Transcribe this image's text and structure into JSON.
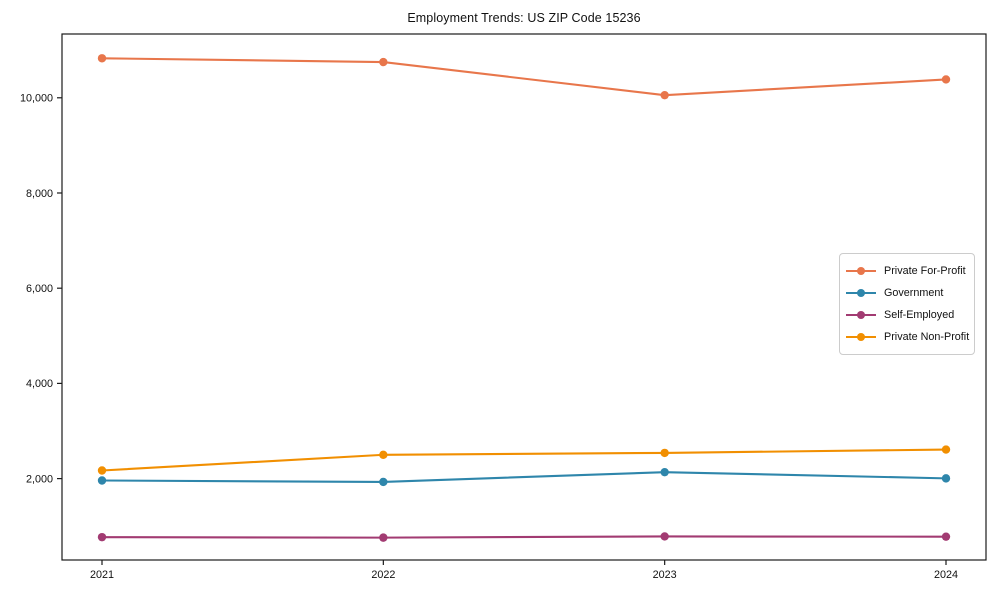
{
  "chart_data": {
    "type": "line",
    "title": "Employment Trends: US ZIP Code 15236",
    "xlabel": "",
    "ylabel": "",
    "x_labels": [
      "2021",
      "2022",
      "2023",
      "2024"
    ],
    "series": [
      {
        "name": "Private For-Profit",
        "color": "#E8764B",
        "values": [
          10830,
          10750,
          10055,
          10385
        ]
      },
      {
        "name": "Government",
        "color": "#2E86AB",
        "values": [
          1960,
          1930,
          2135,
          2005
        ]
      },
      {
        "name": "Self-Employed",
        "color": "#A23B72",
        "values": [
          770,
          760,
          785,
          780
        ]
      },
      {
        "name": "Private Non-Profit",
        "color": "#F18F01",
        "values": [
          2170,
          2500,
          2540,
          2610
        ]
      }
    ],
    "yticks": [
      2000,
      4000,
      6000,
      8000,
      10000
    ],
    "ytick_labels": [
      "2,000",
      "4,000",
      "6,000",
      "8,000",
      "10,000"
    ],
    "ylim": [
      290,
      11340
    ],
    "grid": false,
    "legend_position": "center-right",
    "axis_color": "#1a1a1a",
    "plot_background": "#ffffff"
  }
}
